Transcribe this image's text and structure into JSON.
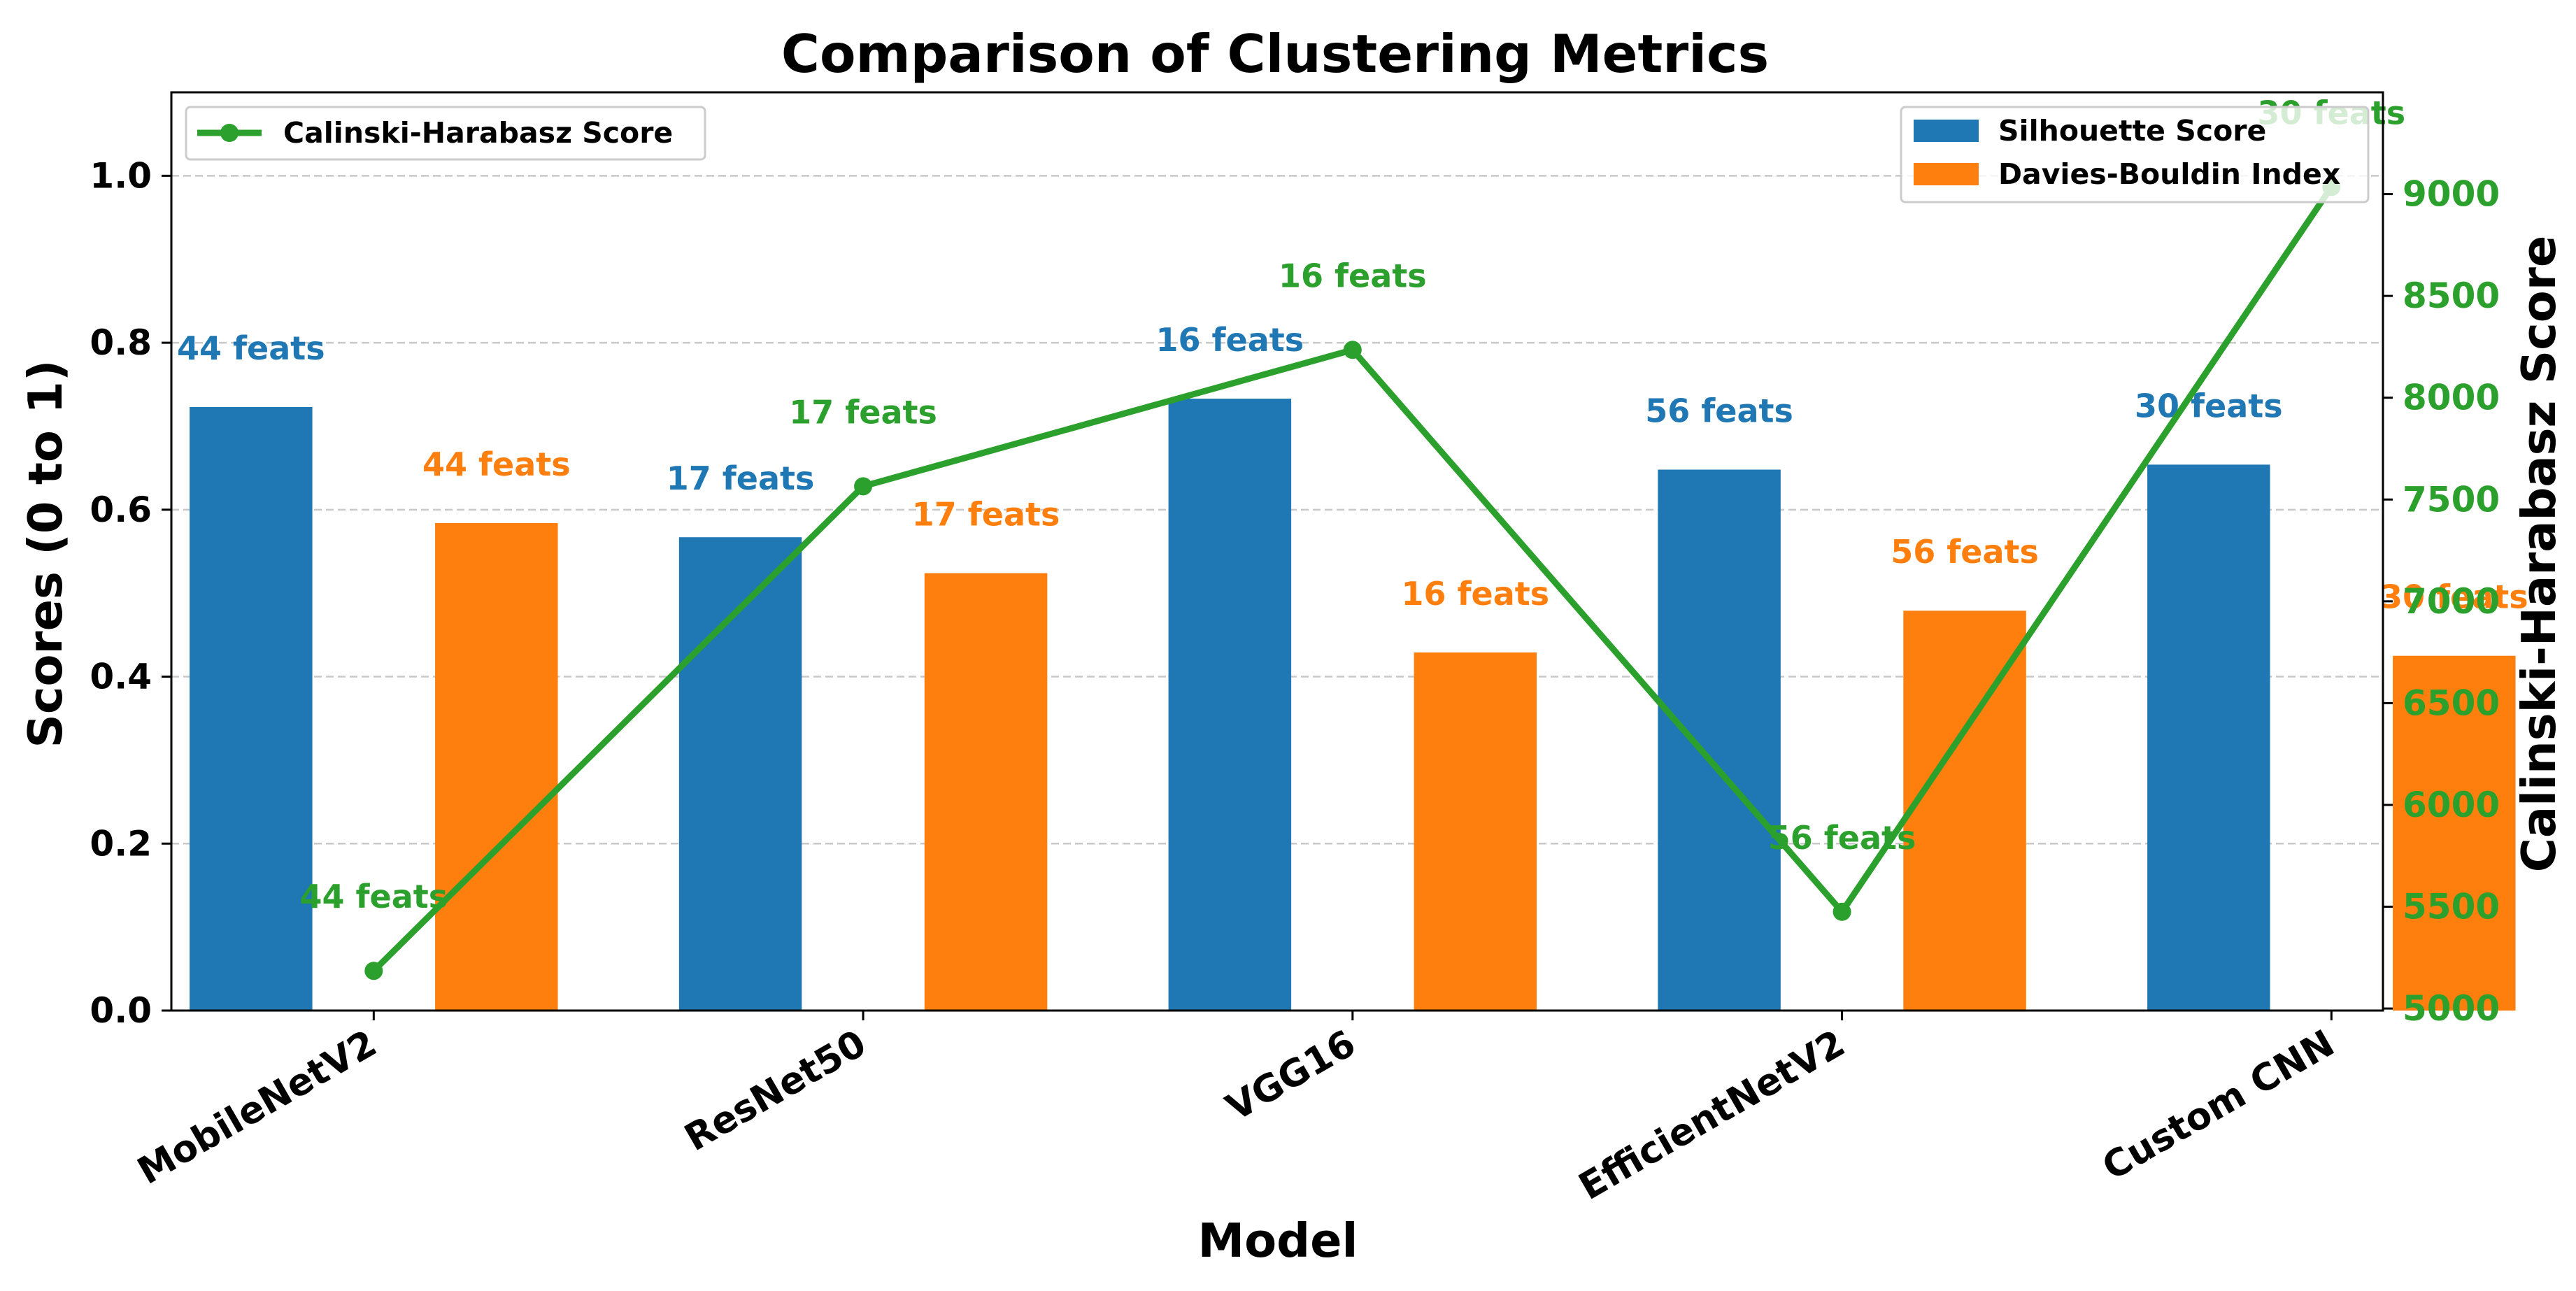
{
  "chart_data": {
    "type": "bar",
    "title": "Comparison of Clustering Metrics",
    "xlabel": "Model",
    "ylabel": "Scores (0 to 1)",
    "y2label": "Calinski-Harabasz Score",
    "ylim": [
      0,
      1.1
    ],
    "y2lim": [
      4990,
      9500
    ],
    "yticks": [
      0.0,
      0.2,
      0.4,
      0.6,
      0.8,
      1.0
    ],
    "ytick_labels": [
      "0.0",
      "0.2",
      "0.4",
      "0.6",
      "0.8",
      "1.0"
    ],
    "y2ticks": [
      5000,
      5500,
      6000,
      6500,
      7000,
      7500,
      8000,
      8500,
      9000
    ],
    "y2tick_labels": [
      "5000",
      "5500",
      "6000",
      "6500",
      "7000",
      "7500",
      "8000",
      "8500",
      "9000"
    ],
    "grid": "horizontal dashed",
    "categories": [
      "MobileNetV2",
      "ResNet50",
      "VGG16",
      "EfficientNetV2",
      "Custom CNN"
    ],
    "series": [
      {
        "name": "Silhouette Score",
        "kind": "bar",
        "color": "#1f77b4",
        "values": [
          0.723,
          0.567,
          0.733,
          0.648,
          0.654
        ],
        "labels": [
          "44 feats",
          "17 feats",
          "16 feats",
          "56 feats",
          "30 feats"
        ]
      },
      {
        "name": "Davies-Bouldin Index",
        "kind": "bar",
        "color": "#ff7f0e",
        "values": [
          0.584,
          0.524,
          0.429,
          0.479,
          0.425
        ],
        "labels": [
          "44 feats",
          "17 feats",
          "16 feats",
          "56 feats",
          "30 feats"
        ]
      },
      {
        "name": "Calinski-Harabasz Score",
        "kind": "line",
        "axis": "right",
        "color": "#2ca02c",
        "values": [
          5185,
          7565,
          8235,
          5475,
          9035
        ],
        "labels": [
          "44 feats",
          "17 feats",
          "16 feats",
          "56 feats",
          "30 feats"
        ]
      }
    ],
    "legend": {
      "left": [
        "Calinski-Harabasz Score"
      ],
      "right": [
        "Silhouette Score",
        "Davies-Bouldin Index"
      ],
      "placement": "upper-left and upper-right"
    }
  }
}
